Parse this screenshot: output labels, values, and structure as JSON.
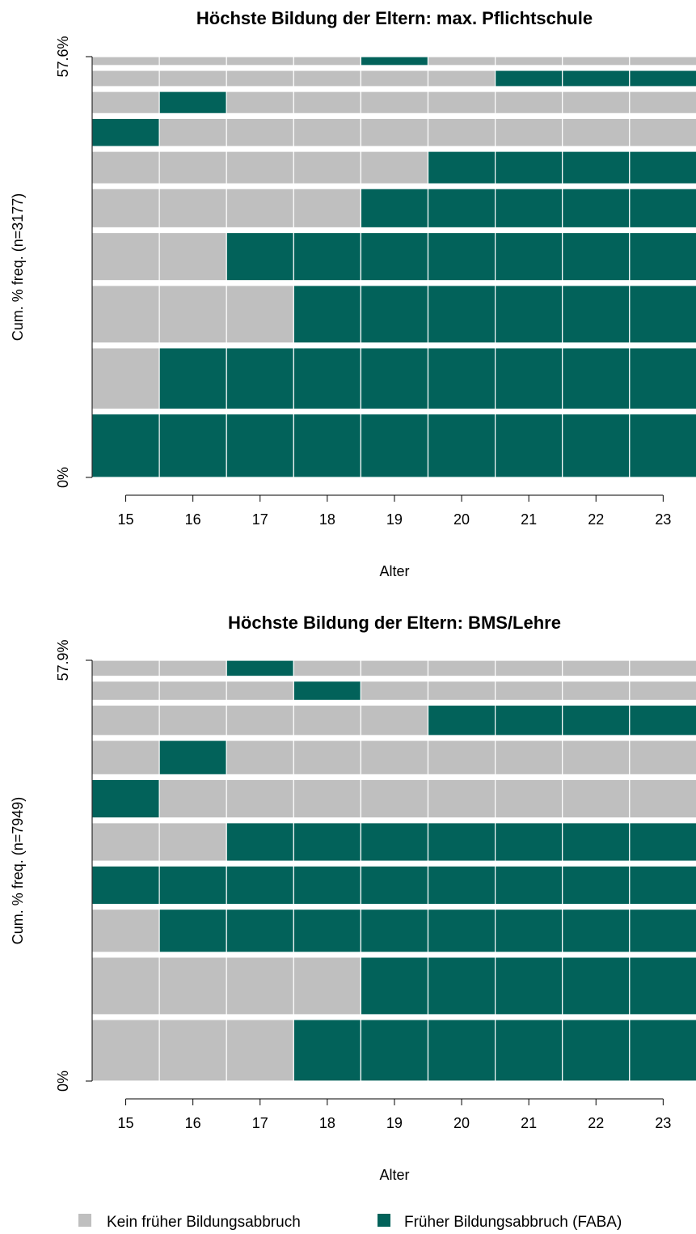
{
  "colors": {
    "kein": "#bfbfbf",
    "faba": "#02625a",
    "background": "#ffffff"
  },
  "legend": [
    {
      "label": "Kein früher Bildungsabbruch",
      "color": "#bfbfbf"
    },
    {
      "label": "Früher Bildungsabbruch (FABA)",
      "color": "#02625a"
    }
  ],
  "chart_data": [
    {
      "type": "sequence-index",
      "title": "Höchste Bildung der Eltern: max. Pflichtschule",
      "xlabel": "Alter",
      "ylabel": "Cum. % freq. (n=3177)",
      "y_ticks": [
        "0%",
        "57.6%"
      ],
      "ylim": [
        0,
        57.6
      ],
      "x_ticks": [
        "15",
        "16",
        "17",
        "18",
        "19",
        "20",
        "21",
        "22",
        "23"
      ],
      "sequences_bottom_to_top": [
        {
          "states": [
            "F",
            "F",
            "F",
            "F",
            "F",
            "F",
            "F",
            "F",
            "F"
          ],
          "pct": 8.6
        },
        {
          "states": [
            "K",
            "F",
            "F",
            "F",
            "F",
            "F",
            "F",
            "F",
            "F"
          ],
          "pct": 8.3
        },
        {
          "states": [
            "K",
            "K",
            "K",
            "F",
            "F",
            "F",
            "F",
            "F",
            "F"
          ],
          "pct": 7.8
        },
        {
          "states": [
            "K",
            "K",
            "F",
            "F",
            "F",
            "F",
            "F",
            "F",
            "F"
          ],
          "pct": 6.5
        },
        {
          "states": [
            "K",
            "K",
            "K",
            "K",
            "F",
            "F",
            "F",
            "F",
            "F"
          ],
          "pct": 5.3
        },
        {
          "states": [
            "K",
            "K",
            "K",
            "K",
            "K",
            "F",
            "F",
            "F",
            "F"
          ],
          "pct": 4.4
        },
        {
          "states": [
            "F",
            "K",
            "K",
            "K",
            "K",
            "K",
            "K",
            "K",
            "K"
          ],
          "pct": 3.8
        },
        {
          "states": [
            "K",
            "F",
            "K",
            "K",
            "K",
            "K",
            "K",
            "K",
            "K"
          ],
          "pct": 3.0
        },
        {
          "states": [
            "K",
            "K",
            "K",
            "K",
            "K",
            "K",
            "F",
            "F",
            "F"
          ],
          "pct": 2.2
        },
        {
          "states": [
            "K",
            "K",
            "K",
            "K",
            "F",
            "K",
            "K",
            "K",
            "K"
          ],
          "pct": 1.2
        }
      ]
    },
    {
      "type": "sequence-index",
      "title": "Höchste Bildung der Eltern: BMS/Lehre",
      "xlabel": "Alter",
      "ylabel": "Cum. % freq. (n=7949)",
      "y_ticks": [
        "0%",
        "57.9%"
      ],
      "ylim": [
        0,
        57.9
      ],
      "x_ticks": [
        "15",
        "16",
        "17",
        "18",
        "19",
        "20",
        "21",
        "22",
        "23"
      ],
      "sequences_bottom_to_top": [
        {
          "states": [
            "K",
            "K",
            "K",
            "F",
            "F",
            "F",
            "F",
            "F",
            "F"
          ],
          "pct": 7.7
        },
        {
          "states": [
            "K",
            "K",
            "K",
            "K",
            "F",
            "F",
            "F",
            "F",
            "F"
          ],
          "pct": 7.2
        },
        {
          "states": [
            "K",
            "F",
            "F",
            "F",
            "F",
            "F",
            "F",
            "F",
            "F"
          ],
          "pct": 5.4
        },
        {
          "states": [
            "F",
            "F",
            "F",
            "F",
            "F",
            "F",
            "F",
            "F",
            "F"
          ],
          "pct": 4.8
        },
        {
          "states": [
            "K",
            "K",
            "F",
            "F",
            "F",
            "F",
            "F",
            "F",
            "F"
          ],
          "pct": 4.8
        },
        {
          "states": [
            "F",
            "K",
            "K",
            "K",
            "K",
            "K",
            "K",
            "K",
            "K"
          ],
          "pct": 4.8
        },
        {
          "states": [
            "K",
            "F",
            "K",
            "K",
            "K",
            "K",
            "K",
            "K",
            "K"
          ],
          "pct": 4.3
        },
        {
          "states": [
            "K",
            "K",
            "K",
            "K",
            "K",
            "F",
            "F",
            "F",
            "F"
          ],
          "pct": 3.8
        },
        {
          "states": [
            "K",
            "K",
            "K",
            "F",
            "K",
            "K",
            "K",
            "K",
            "K"
          ],
          "pct": 2.4
        },
        {
          "states": [
            "K",
            "K",
            "F",
            "K",
            "K",
            "K",
            "K",
            "K",
            "K"
          ],
          "pct": 2.0
        }
      ]
    }
  ]
}
